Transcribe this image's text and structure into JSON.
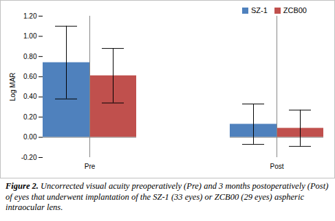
{
  "chart_data": {
    "type": "bar",
    "caption_label": "Figure 2.",
    "caption": "Uncorrected visual acuity preoperatively (Pre) and 3 months postoperatively (Post) of eyes that underwent implantation of the SZ-1 (33 eyes) or ZCB00 (29 eyes) aspheric intraocular lens.",
    "y_label": "Log MAR",
    "categories": [
      "Pre",
      "Post"
    ],
    "series": [
      {
        "name": "SZ-1",
        "color": "#4f81bd",
        "values": [
          0.74,
          0.13
        ],
        "error": [
          0.36,
          0.2
        ]
      },
      {
        "name": "ZCB00",
        "color": "#c0504d",
        "values": [
          0.61,
          0.09
        ],
        "error": [
          0.27,
          0.18
        ]
      }
    ],
    "ylim": [
      -0.2,
      1.2
    ],
    "yticks": [
      {
        "value": -0.2,
        "label": "-0.20"
      },
      {
        "value": 0,
        "label": "0.00"
      },
      {
        "value": 0.2,
        "label": "0.20"
      },
      {
        "value": 0.4,
        "label": "0.40"
      },
      {
        "value": 0.6,
        "label": "0.60"
      },
      {
        "value": 0.8,
        "label": "0.80"
      },
      {
        "value": 1,
        "label": "1.00"
      },
      {
        "value": 1.2,
        "label": "1.20"
      }
    ],
    "grid": false,
    "legend": "top-right"
  }
}
